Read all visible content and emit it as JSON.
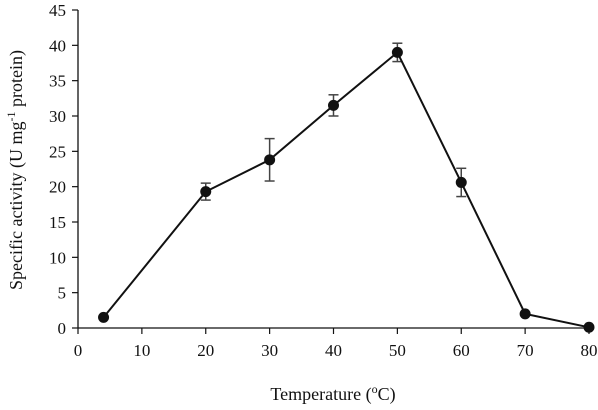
{
  "chart_data": {
    "type": "line",
    "title": "",
    "xlabel": "Temperature (oC)",
    "xlabel_parts": {
      "prefix": "Temperature (",
      "sup": "o",
      "suffix": "C)"
    },
    "ylabel": "Specific activity (U mg-1 protein)",
    "ylabel_parts": {
      "prefix": "Specific activity (U mg",
      "sup": "-1",
      "suffix": " protein)"
    },
    "xlim": [
      0,
      80
    ],
    "ylim": [
      0,
      45
    ],
    "xticks": [
      0,
      10,
      20,
      30,
      40,
      50,
      60,
      70,
      80
    ],
    "yticks": [
      0,
      5,
      10,
      15,
      20,
      25,
      30,
      35,
      40,
      45
    ],
    "grid": false,
    "legend": "none",
    "series": [
      {
        "x": [
          4,
          20,
          30,
          40,
          50,
          60,
          70,
          80
        ],
        "y": [
          1.5,
          19.3,
          23.8,
          31.5,
          39.0,
          20.6,
          2.0,
          0.1
        ],
        "error": [
          0,
          1.2,
          3.0,
          1.5,
          1.3,
          2.0,
          0,
          0
        ],
        "color": "#111111"
      }
    ]
  }
}
